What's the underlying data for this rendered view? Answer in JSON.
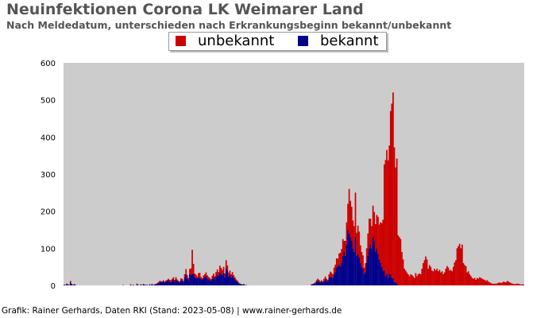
{
  "chart_data": {
    "type": "bar",
    "stacked": true,
    "title": "Neuinfektionen Corona LK Weimarer Land",
    "subtitle": "Nach Meldedatum, unterschieden nach Erkrankungsbeginn bekannt/unbekannt",
    "ylim": [
      0,
      600
    ],
    "yticks": [
      0,
      100,
      200,
      300,
      400,
      500,
      600
    ],
    "grid": false,
    "legend_position": "top-center",
    "series": [
      {
        "name": "unbekannt",
        "color": "#cc0000",
        "values": [
          0,
          0,
          2,
          1,
          0,
          4,
          1,
          0,
          2,
          0,
          0,
          0,
          0,
          0,
          0,
          0,
          0,
          0,
          0,
          0,
          0,
          0,
          0,
          0,
          0,
          0,
          0,
          0,
          0,
          0,
          0,
          0,
          0,
          0,
          0,
          0,
          0,
          0,
          0,
          0,
          0,
          0,
          0,
          0,
          0,
          0,
          0,
          0,
          0,
          0,
          0,
          0,
          0,
          1,
          0,
          1,
          0,
          0,
          2,
          0,
          0,
          1,
          0,
          1,
          0,
          0,
          1,
          0,
          1,
          0,
          1,
          0,
          1,
          1,
          2,
          3,
          4,
          2,
          1,
          2,
          2,
          3,
          3,
          4,
          5,
          6,
          6,
          7,
          5,
          6,
          4,
          3,
          2,
          5,
          6,
          3,
          8,
          14,
          10,
          6,
          14,
          18,
          66,
          28,
          10,
          9,
          6,
          11,
          14,
          5,
          4,
          7,
          8,
          10,
          9,
          7,
          6,
          5,
          8,
          10,
          9,
          12,
          15,
          10,
          18,
          17,
          14,
          16,
          10,
          22,
          14,
          10,
          12,
          8,
          10,
          8,
          6,
          4,
          3,
          2,
          1,
          1,
          0,
          1,
          0,
          0,
          0,
          0,
          0,
          0,
          0,
          0,
          0,
          0,
          0,
          0,
          0,
          0,
          0,
          0,
          0,
          0,
          0,
          0,
          0,
          0,
          0,
          0,
          0,
          0,
          0,
          0,
          0,
          0,
          0,
          0,
          0,
          0,
          0,
          0,
          0,
          0,
          0,
          0,
          0,
          0,
          0,
          0,
          0,
          0,
          0,
          0,
          0,
          0,
          0,
          0,
          0,
          1,
          1,
          2,
          2,
          4,
          6,
          5,
          3,
          4,
          3,
          6,
          8,
          6,
          5,
          10,
          13,
          12,
          10,
          18,
          20,
          25,
          22,
          30,
          36,
          38,
          45,
          30,
          40,
          60,
          70,
          120,
          98,
          92,
          75,
          70,
          120,
          62,
          76,
          70,
          48,
          40,
          36,
          18,
          24,
          40,
          60,
          80,
          70,
          60,
          85,
          78,
          75,
          90,
          100,
          94,
          110,
          118,
          137,
          286,
          313,
          335,
          317,
          347,
          440,
          470,
          500,
          362,
          310,
          336,
          135,
          130,
          125,
          90,
          70,
          45,
          40,
          35,
          30,
          25,
          30,
          28,
          24,
          20,
          33,
          25,
          30,
          32,
          30,
          45,
          60,
          68,
          78,
          70,
          45,
          55,
          50,
          40,
          38,
          45,
          40,
          45,
          38,
          42,
          35,
          38,
          30,
          35,
          45,
          52,
          48,
          40,
          42,
          38,
          50,
          62,
          68,
          100,
          106,
          112,
          100,
          110,
          60,
          55,
          52,
          35,
          38,
          30,
          25,
          20,
          18,
          20,
          15,
          20,
          18,
          22,
          20,
          18,
          16,
          15,
          12,
          14,
          10,
          8,
          6,
          5,
          4,
          5,
          4,
          6,
          7,
          8,
          6,
          8,
          10,
          9,
          8,
          12,
          10,
          8,
          6,
          5,
          4,
          3,
          4,
          5,
          4,
          3,
          2,
          3,
          2
        ]
      },
      {
        "name": "bekannt",
        "color": "#00008b",
        "values": [
          2,
          1,
          3,
          2,
          1,
          8,
          3,
          1,
          2,
          1,
          0,
          0,
          0,
          0,
          0,
          0,
          0,
          0,
          0,
          0,
          0,
          0,
          0,
          0,
          0,
          0,
          0,
          0,
          0,
          0,
          0,
          0,
          0,
          0,
          0,
          0,
          0,
          0,
          0,
          0,
          0,
          0,
          0,
          0,
          0,
          0,
          0,
          1,
          0,
          0,
          0,
          0,
          0,
          2,
          0,
          1,
          0,
          0,
          3,
          1,
          0,
          2,
          0,
          3,
          2,
          1,
          1,
          0,
          2,
          1,
          3,
          1,
          2,
          3,
          4,
          6,
          8,
          10,
          9,
          12,
          8,
          10,
          12,
          14,
          10,
          8,
          12,
          15,
          10,
          16,
          12,
          10,
          8,
          14,
          12,
          10,
          22,
          30,
          18,
          14,
          30,
          28,
          30,
          30,
          22,
          20,
          18,
          22,
          20,
          18,
          15,
          20,
          22,
          25,
          18,
          16,
          14,
          12,
          18,
          22,
          16,
          24,
          28,
          26,
          35,
          30,
          28,
          34,
          22,
          46,
          40,
          24,
          28,
          22,
          26,
          20,
          16,
          12,
          10,
          6,
          4,
          3,
          2,
          3,
          1,
          1,
          0,
          0,
          0,
          0,
          0,
          0,
          0,
          0,
          0,
          0,
          0,
          0,
          0,
          0,
          0,
          0,
          0,
          0,
          0,
          0,
          0,
          0,
          0,
          0,
          0,
          0,
          0,
          0,
          0,
          0,
          0,
          0,
          0,
          0,
          0,
          0,
          0,
          0,
          0,
          0,
          0,
          0,
          0,
          0,
          0,
          0,
          0,
          0,
          0,
          0,
          0,
          2,
          3,
          4,
          6,
          10,
          12,
          10,
          8,
          10,
          8,
          12,
          16,
          12,
          10,
          20,
          24,
          22,
          20,
          30,
          36,
          48,
          50,
          56,
          52,
          60,
          80,
          90,
          80,
          110,
          150,
          140,
          130,
          120,
          100,
          90,
          130,
          80,
          85,
          75,
          60,
          50,
          45,
          30,
          36,
          60,
          80,
          100,
          110,
          100,
          130,
          120,
          90,
          100,
          85,
          70,
          60,
          50,
          40,
          40,
          25,
          30,
          20,
          30,
          30,
          20,
          20,
          10,
          8,
          6,
          0,
          0,
          0,
          0,
          0,
          0,
          0,
          0,
          0,
          0,
          0,
          0,
          0,
          0,
          0,
          0,
          0,
          0,
          0,
          0,
          0,
          0,
          0,
          0,
          0,
          0,
          0,
          0,
          0,
          0,
          0,
          0,
          0,
          0,
          0,
          0,
          0,
          0,
          0,
          0,
          0,
          0,
          0,
          0,
          0,
          0,
          0,
          0,
          0,
          0,
          0,
          0,
          0,
          0,
          0,
          0,
          0,
          0,
          0,
          0,
          0,
          0,
          0,
          0,
          0,
          0,
          0,
          0,
          0,
          0,
          0,
          0,
          0,
          0,
          0,
          0,
          0,
          0,
          0,
          0,
          0,
          0,
          0,
          0,
          0,
          0,
          0,
          0,
          0,
          0,
          0,
          0,
          0,
          0,
          0,
          0,
          0,
          0,
          0,
          0,
          0
        ]
      }
    ]
  },
  "legend": {
    "unbekannt": "unbekannt",
    "bekannt": "bekannt"
  },
  "credit": "Grafik: Rainer Gerhards, Daten RKI (Stand: 2023-05-08) | www.rainer-gerhards.de"
}
